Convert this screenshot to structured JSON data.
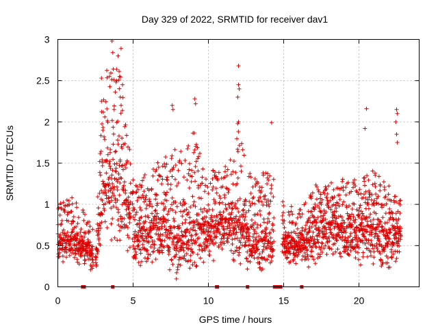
{
  "chart_data": {
    "type": "scatter",
    "title": "Day 329 of 2022, SRMTID for receiver dav1",
    "xlabel": "GPS time / hours",
    "ylabel": "SRMTID / TECUs",
    "xlim": [
      0,
      24
    ],
    "ylim": [
      0,
      3
    ],
    "xticks": [
      0,
      5,
      10,
      15,
      20
    ],
    "xtick_labels": [
      "0",
      "5",
      "10",
      "15",
      "20"
    ],
    "yticks": [
      0,
      0.5,
      1,
      1.5,
      2,
      2.5,
      3
    ],
    "ytick_labels": [
      "0",
      "0.5",
      "1",
      "1.5",
      "2",
      "2.5",
      "3"
    ],
    "grid": true,
    "marker": "plus",
    "color": "#dd0000",
    "series": [
      {
        "name": "SRMTID",
        "x_start": 0.0,
        "x_end": 22.8,
        "gaps": [
          [
            2.35,
            2.5
          ],
          [
            4.85,
            4.95
          ],
          [
            14.35,
            14.9
          ]
        ],
        "envelope": [
          {
            "x": 0.0,
            "low": 0.2,
            "typ": 0.55,
            "high": 1.05
          },
          {
            "x": 1.0,
            "low": 0.3,
            "typ": 0.6,
            "high": 1.1
          },
          {
            "x": 2.0,
            "low": 0.25,
            "typ": 0.5,
            "high": 0.85
          },
          {
            "x": 2.5,
            "low": 0.05,
            "typ": 0.3,
            "high": 0.6
          },
          {
            "x": 3.0,
            "low": 0.4,
            "typ": 1.2,
            "high": 2.5
          },
          {
            "x": 3.5,
            "low": 0.5,
            "typ": 1.3,
            "high": 2.85
          },
          {
            "x": 4.0,
            "low": 0.4,
            "typ": 1.4,
            "high": 2.85
          },
          {
            "x": 4.5,
            "low": 0.5,
            "typ": 1.2,
            "high": 2.1
          },
          {
            "x": 5.0,
            "low": 0.15,
            "typ": 0.6,
            "high": 1.3
          },
          {
            "x": 6.0,
            "low": 0.2,
            "typ": 0.7,
            "high": 1.4
          },
          {
            "x": 7.0,
            "low": 0.3,
            "typ": 0.8,
            "high": 1.6
          },
          {
            "x": 8.0,
            "low": 0.02,
            "typ": 0.55,
            "high": 1.7
          },
          {
            "x": 9.0,
            "low": 0.2,
            "typ": 0.8,
            "high": 1.9
          },
          {
            "x": 10.0,
            "low": 0.25,
            "typ": 0.7,
            "high": 1.4
          },
          {
            "x": 11.0,
            "low": 0.3,
            "typ": 0.8,
            "high": 1.5
          },
          {
            "x": 12.0,
            "low": 0.2,
            "typ": 0.8,
            "high": 1.9
          },
          {
            "x": 13.0,
            "low": 0.2,
            "typ": 0.6,
            "high": 1.3
          },
          {
            "x": 14.0,
            "low": 0.15,
            "typ": 0.6,
            "high": 1.5
          },
          {
            "x": 15.0,
            "low": 0.3,
            "typ": 0.55,
            "high": 1.0
          },
          {
            "x": 16.0,
            "low": 0.25,
            "typ": 0.55,
            "high": 0.95
          },
          {
            "x": 17.0,
            "low": 0.2,
            "typ": 0.65,
            "high": 1.2
          },
          {
            "x": 18.0,
            "low": 0.3,
            "typ": 0.75,
            "high": 1.25
          },
          {
            "x": 19.0,
            "low": 0.3,
            "typ": 0.75,
            "high": 1.3
          },
          {
            "x": 20.0,
            "low": 0.2,
            "typ": 0.7,
            "high": 1.3
          },
          {
            "x": 21.0,
            "low": 0.25,
            "typ": 0.75,
            "high": 1.4
          },
          {
            "x": 22.0,
            "low": 0.2,
            "typ": 0.6,
            "high": 1.3
          },
          {
            "x": 22.8,
            "low": 0.3,
            "typ": 0.7,
            "high": 1.2
          }
        ],
        "outliers": [
          {
            "x": 3.6,
            "y": 2.98
          },
          {
            "x": 3.65,
            "y": 2.84
          },
          {
            "x": 4.2,
            "y": 2.89
          },
          {
            "x": 4.0,
            "y": 2.8
          },
          {
            "x": 4.1,
            "y": 2.55
          },
          {
            "x": 3.9,
            "y": 2.5
          },
          {
            "x": 2.9,
            "y": 2.53
          },
          {
            "x": 12.0,
            "y": 2.68
          },
          {
            "x": 12.0,
            "y": 2.45
          },
          {
            "x": 12.05,
            "y": 2.4
          },
          {
            "x": 11.95,
            "y": 2.3
          },
          {
            "x": 22.5,
            "y": 2.15
          },
          {
            "x": 22.55,
            "y": 2.1
          },
          {
            "x": 20.5,
            "y": 2.16
          },
          {
            "x": 9.1,
            "y": 2.28
          },
          {
            "x": 9.15,
            "y": 2.22
          },
          {
            "x": 7.6,
            "y": 2.2
          },
          {
            "x": 7.65,
            "y": 2.15
          },
          {
            "x": 14.2,
            "y": 1.99
          },
          {
            "x": 22.45,
            "y": 2.0
          },
          {
            "x": 22.5,
            "y": 1.85
          },
          {
            "x": 22.55,
            "y": 1.75
          },
          {
            "x": 20.4,
            "y": 1.92
          },
          {
            "x": 12.0,
            "y": 2.0
          },
          {
            "x": 11.95,
            "y": 1.98
          },
          {
            "x": 2.9,
            "y": 2.25
          },
          {
            "x": 4.3,
            "y": 2.45
          },
          {
            "x": 4.15,
            "y": 2.3
          }
        ]
      }
    ],
    "zero_markers": [
      1.65,
      1.75,
      3.65,
      10.55,
      10.6,
      12.6,
      14.4,
      14.5,
      14.6,
      14.7,
      14.8,
      16.2
    ]
  }
}
